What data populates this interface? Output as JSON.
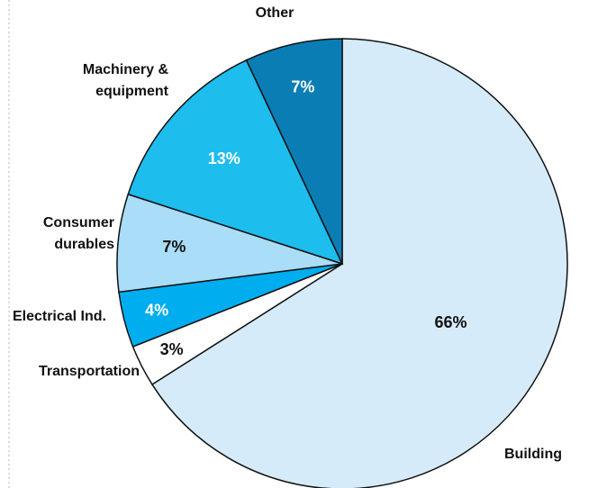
{
  "chart_data": {
    "type": "pie",
    "categories": [
      "Building",
      "Transportation",
      "Electrical Ind.",
      "Consumer durables",
      "Machinery & equipment",
      "Other"
    ],
    "values": [
      66,
      3,
      4,
      7,
      13,
      7
    ],
    "value_labels": [
      "66%",
      "3%",
      "4%",
      "7%",
      "13%",
      "7%"
    ],
    "colors": [
      "#d5ebfa",
      "#ffffff",
      "#00adef",
      "#a9ddf8",
      "#1dbdee",
      "#0b7db5"
    ]
  }
}
